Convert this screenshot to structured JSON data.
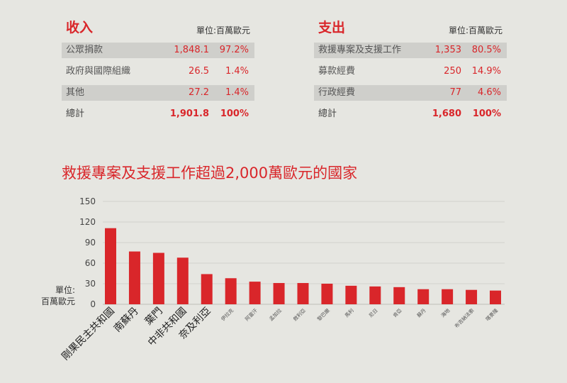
{
  "income": {
    "title": "收入",
    "unit": "單位:百萬歐元",
    "rows": [
      {
        "label": "公眾捐款",
        "amount": "1,848.1",
        "percent": "97.2%"
      },
      {
        "label": "政府與國際組織",
        "amount": "26.5",
        "percent": "1.4%"
      },
      {
        "label": "其他",
        "amount": "27.2",
        "percent": "1.4%"
      }
    ],
    "total": {
      "label": "總計",
      "amount": "1,901.8",
      "percent": "100%"
    }
  },
  "expense": {
    "title": "支出",
    "unit": "單位:百萬歐元",
    "rows": [
      {
        "label": "救援專案及支援工作",
        "amount": "1,353",
        "percent": "80.5%"
      },
      {
        "label": "募款經費",
        "amount": "250",
        "percent": "14.9%"
      },
      {
        "label": "行政經費",
        "amount": "77",
        "percent": "4.6%"
      }
    ],
    "total": {
      "label": "總計",
      "amount": "1,680",
      "percent": "100%"
    }
  },
  "chart_data": {
    "type": "bar",
    "title": "救援專案及支援工作超過2,000萬歐元的國家",
    "ylabel": "單位:\n百萬歐元",
    "ylim": [
      0,
      150
    ],
    "yticks": [
      0,
      30,
      60,
      90,
      120,
      150
    ],
    "grid": true,
    "bar_color": "#d9262a",
    "categories": [
      "剛果民主共和國",
      "南蘇丹",
      "葉門",
      "中非共和國",
      "奈及利亞",
      "伊拉克",
      "阿富汗",
      "孟加拉",
      "敘利亞",
      "黎巴嫩",
      "馬利",
      "尼日",
      "肯亞",
      "蘇丹",
      "海地",
      "布吉納法索",
      "喀麥隆"
    ],
    "values": [
      111,
      77,
      75,
      68,
      44,
      38,
      33,
      31,
      31,
      30,
      27,
      26,
      25,
      22,
      22,
      21,
      20
    ]
  }
}
